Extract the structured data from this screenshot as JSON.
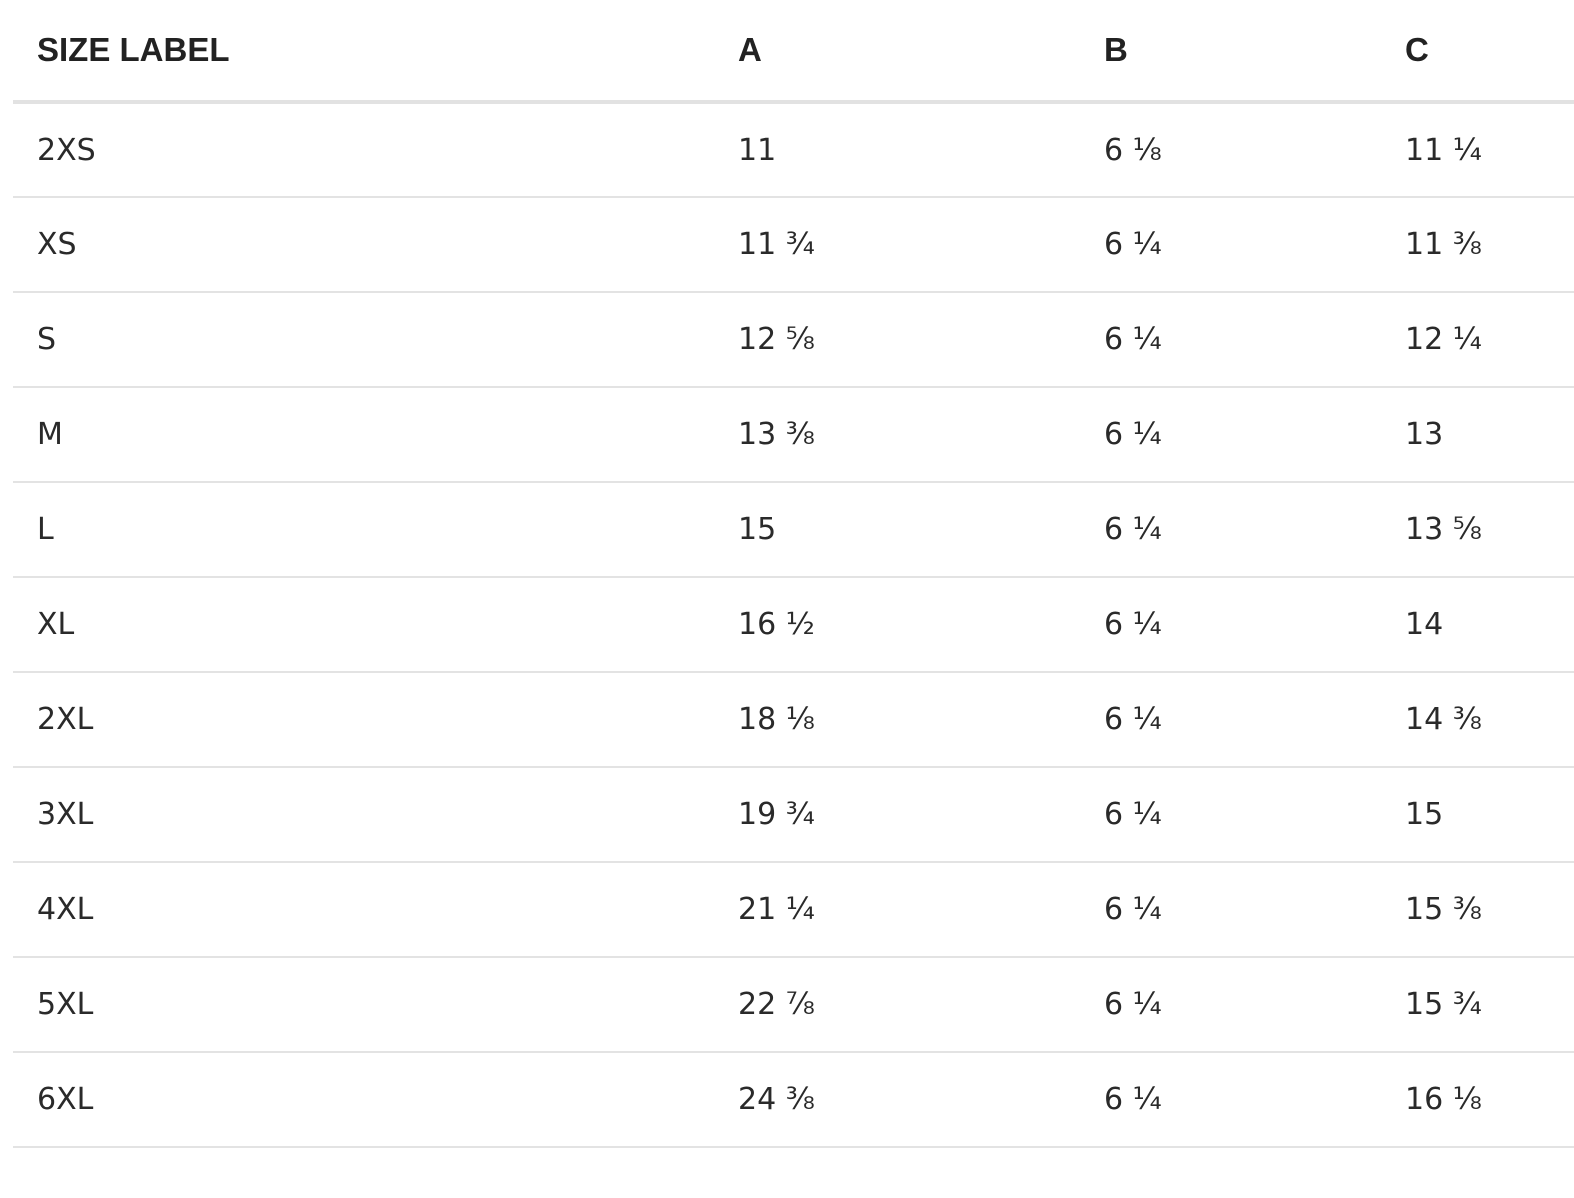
{
  "table": {
    "headers": [
      "SIZE LABEL",
      "A",
      "B",
      "C"
    ],
    "rows": [
      [
        "2XS",
        "11",
        "6 ⅛",
        "11 ¼"
      ],
      [
        "XS",
        "11 ¾",
        "6 ¼",
        "11 ⅜"
      ],
      [
        "S",
        "12 ⅝",
        "6 ¼",
        "12 ¼"
      ],
      [
        "M",
        "13 ⅜",
        "6 ¼",
        "13"
      ],
      [
        "L",
        "15",
        "6 ¼",
        "13 ⅝"
      ],
      [
        "XL",
        "16 ½",
        "6 ¼",
        "14"
      ],
      [
        "2XL",
        "18 ⅛",
        "6 ¼",
        "14 ⅜"
      ],
      [
        "3XL",
        "19 ¾",
        "6 ¼",
        "15"
      ],
      [
        "4XL",
        "21 ¼",
        "6 ¼",
        "15 ⅜"
      ],
      [
        "5XL",
        "22 ⅞",
        "6 ¼",
        "15 ¾"
      ],
      [
        "6XL",
        "24 ⅜",
        "6 ¼",
        "16 ⅛"
      ]
    ]
  }
}
